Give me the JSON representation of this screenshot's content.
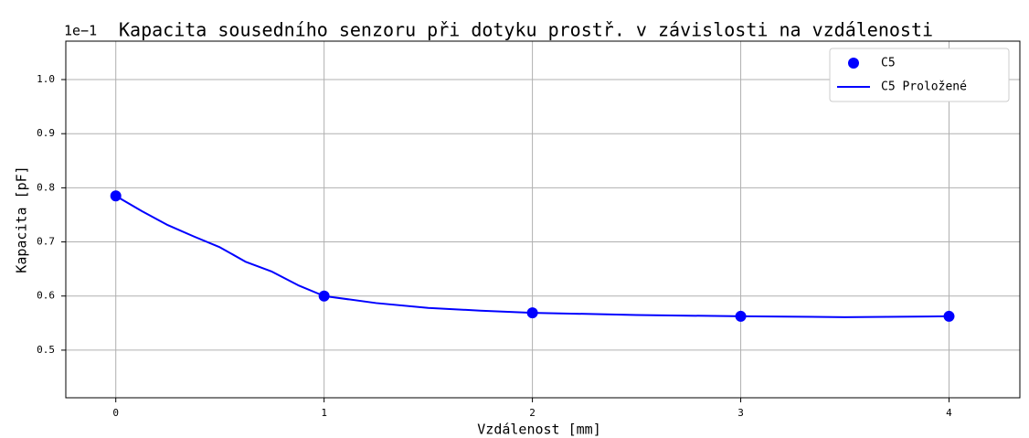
{
  "chart_data": {
    "type": "line",
    "title": "Kapacita sousedního senzoru při dotyku prostř. v závislosti na vzdálenosti",
    "offset_label": "1e−1",
    "xlabel": "Vzdálenost [mm]",
    "ylabel": "Kapacita [pF]",
    "xlim": [
      -0.24,
      4.34
    ],
    "ylim": [
      0.412,
      1.071
    ],
    "xticks": [
      0,
      1,
      2,
      3,
      4
    ],
    "yticks": [
      0.5,
      0.6,
      0.7,
      0.8,
      0.9,
      {
        "value": 1.0,
        "label": "1.0"
      }
    ],
    "grid": true,
    "legend": "upper right",
    "series": [
      {
        "name": "C5",
        "color": "#0000ff",
        "marker": "o",
        "x": [
          0,
          1,
          2,
          3,
          4
        ],
        "values": [
          0.785,
          0.6,
          0.569,
          0.5625,
          0.5625
        ]
      },
      {
        "name": "C5 Proložené",
        "color": "#0000ff",
        "marker": "none",
        "x": [
          0,
          0.125,
          0.25,
          0.375,
          0.5,
          0.625,
          0.75,
          0.875,
          1,
          1.25,
          1.5,
          1.75,
          2,
          2.5,
          3,
          3.5,
          4
        ],
        "values": [
          0.785,
          0.757,
          0.731,
          0.71,
          0.69,
          0.663,
          0.645,
          0.62,
          0.6,
          0.587,
          0.578,
          0.573,
          0.569,
          0.565,
          0.5625,
          0.561,
          0.5625
        ]
      }
    ]
  }
}
